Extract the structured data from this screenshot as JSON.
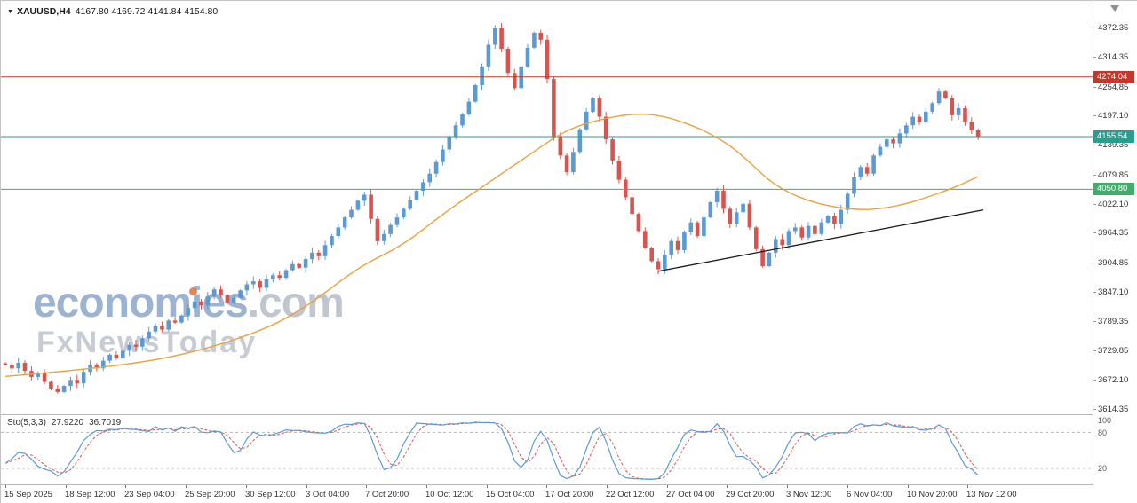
{
  "header": {
    "symbol": "XAUUSD,H4",
    "ohlc": "4167.80 4169.72 4141.84 4154.80"
  },
  "watermark": {
    "brand": "economies",
    "tld": ".com",
    "tagline": "FxNewsToday"
  },
  "colors": {
    "up": "#5b9bd5",
    "down": "#d9534f",
    "ma": "#e8a33d",
    "trend": "#1a1a1a",
    "resistance": "#c0392b",
    "bid": "#2a9d8f",
    "support": "#3fae6b",
    "stoch_main": "#5b9bd5",
    "stoch_signal": "#d9534f",
    "level_line": "#bcbcbc",
    "axis_text": "#333333"
  },
  "price_axis": {
    "labels": [
      4372.35,
      4314.35,
      4254.85,
      4197.1,
      4139.35,
      4079.85,
      4022.1,
      3964.35,
      3904.85,
      3847.1,
      3789.35,
      3729.85,
      3672.1,
      3614.35
    ]
  },
  "price_lines": [
    {
      "name": "resistance",
      "price": 4274.04,
      "label": "4274.04",
      "color": "#c0392b"
    },
    {
      "name": "bid",
      "price": 4155.54,
      "label": "4155.54",
      "color": "#2a9d8f"
    },
    {
      "name": "support",
      "price": 4050.8,
      "label": "4050.80",
      "color": "#3fae6b"
    }
  ],
  "time_axis": {
    "labels": [
      "15 Sep 2025",
      "18 Sep 12:00",
      "23 Sep 04:00",
      "25 Sep 20:00",
      "30 Sep 12:00",
      "3 Oct 04:00",
      "7 Oct 20:00",
      "10 Oct 12:00",
      "15 Oct 04:00",
      "17 Oct 20:00",
      "22 Oct 12:00",
      "27 Oct 04:00",
      "29 Oct 20:00",
      "3 Nov 12:00",
      "6 Nov 04:00",
      "10 Nov 20:00",
      "13 Nov 12:00"
    ]
  },
  "indicator": {
    "name": "Sto(5,3,3)",
    "value1": "27.9220",
    "value2": "36.7019",
    "levels": [
      100,
      80,
      20
    ]
  },
  "chart_data": {
    "type": "candlestick",
    "symbol": "XAUUSD",
    "timeframe": "H4",
    "title": "XAUUSD,H4 4167.80 4169.72 4141.84 4154.80",
    "ylim": [
      3614.35,
      4372.35
    ],
    "first_open": 3705,
    "closes": [
      3702,
      3695,
      3706,
      3690,
      3678,
      3685,
      3668,
      3655,
      3648,
      3660,
      3672,
      3665,
      3688,
      3702,
      3695,
      3710,
      3722,
      3715,
      3730,
      3742,
      3738,
      3755,
      3768,
      3780,
      3772,
      3790,
      3786,
      3800,
      3815,
      3828,
      3820,
      3838,
      3852,
      3840,
      3826,
      3835,
      3850,
      3862,
      3868,
      3855,
      3872,
      3880,
      3875,
      3890,
      3902,
      3895,
      3912,
      3925,
      3918,
      3940,
      3958,
      3975,
      3995,
      4010,
      4028,
      4040,
      3992,
      3948,
      3962,
      3980,
      3995,
      4012,
      4030,
      4048,
      4065,
      4082,
      4105,
      4130,
      4155,
      4178,
      4200,
      4225,
      4258,
      4295,
      4338,
      4372,
      4330,
      4282,
      4252,
      4295,
      4332,
      4362,
      4348,
      4270,
      4155,
      4118,
      4085,
      4125,
      4170,
      4205,
      4232,
      4195,
      4150,
      4108,
      4070,
      4035,
      4002,
      3968,
      3935,
      3908,
      3892,
      3920,
      3948,
      3930,
      3965,
      3985,
      3958,
      3995,
      4025,
      4048,
      4012,
      3982,
      4005,
      4022,
      3975,
      3932,
      3898,
      3925,
      3952,
      3940,
      3968,
      3975,
      3955,
      3978,
      3962,
      3985,
      3998,
      3982,
      4010,
      4042,
      4075,
      4095,
      4082,
      4118,
      4135,
      4150,
      4142,
      4162,
      4178,
      4195,
      4185,
      4205,
      4222,
      4245,
      4232,
      4198,
      4212,
      4185,
      4168,
      4155
    ],
    "ma_points": [
      [
        0,
        3679
      ],
      [
        13,
        3693
      ],
      [
        27,
        3719
      ],
      [
        40,
        3772
      ],
      [
        47,
        3825
      ],
      [
        54,
        3896
      ],
      [
        61,
        3940
      ],
      [
        67,
        4002
      ],
      [
        74,
        4064
      ],
      [
        81,
        4126
      ],
      [
        86,
        4170
      ],
      [
        92,
        4193
      ],
      [
        97,
        4202
      ],
      [
        101,
        4196
      ],
      [
        105,
        4179
      ],
      [
        108,
        4161
      ],
      [
        111,
        4138
      ],
      [
        114,
        4105
      ],
      [
        117,
        4068
      ],
      [
        120,
        4044
      ],
      [
        123,
        4028
      ],
      [
        126,
        4018
      ],
      [
        129,
        4012
      ],
      [
        132,
        4010
      ],
      [
        135,
        4014
      ],
      [
        138,
        4022
      ],
      [
        141,
        4034
      ],
      [
        144,
        4048
      ],
      [
        146,
        4058
      ],
      [
        148,
        4070
      ],
      [
        149,
        4076
      ]
    ],
    "trendline": {
      "from": [
        100,
        3888
      ],
      "to": [
        149,
        4010
      ]
    },
    "horizontal_lines": [
      4274.04,
      4155.54,
      4050.8
    ],
    "stochastic": {
      "period": 5,
      "slowing": 3,
      "signal": 3,
      "current_main": 27.922,
      "current_signal": 36.7019,
      "levels": [
        20,
        80
      ]
    }
  }
}
